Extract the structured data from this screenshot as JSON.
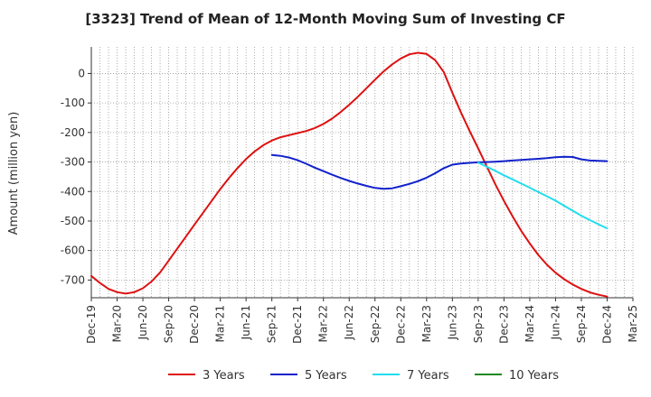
{
  "chart_data": {
    "type": "line",
    "title": "[3323]  Trend of Mean of 12-Month Moving Sum of Investing CF",
    "xlabel": "",
    "ylabel": "Amount (million yen)",
    "ylim": [
      -760,
      90
    ],
    "yticks": [
      0,
      -100,
      -200,
      -300,
      -400,
      -500,
      -600,
      -700
    ],
    "x_start": "2019-12",
    "x_end": "2025-03",
    "x_ticks": [
      "Dec-19",
      "Mar-20",
      "Jun-20",
      "Sep-20",
      "Dec-20",
      "Mar-21",
      "Jun-21",
      "Sep-21",
      "Dec-21",
      "Mar-22",
      "Jun-22",
      "Sep-22",
      "Dec-22",
      "Mar-23",
      "Jun-23",
      "Sep-23",
      "Dec-23",
      "Mar-24",
      "Jun-24",
      "Sep-24",
      "Dec-24",
      "Mar-25"
    ],
    "grid": true,
    "legend_position": "bottom",
    "series": [
      {
        "name": "3 Years",
        "color": "#dd1111",
        "x_index": [
          0,
          1,
          2,
          3,
          4,
          5,
          6,
          7,
          8,
          9,
          10,
          11,
          12,
          13,
          14,
          15,
          16,
          17,
          18,
          19,
          20,
          21,
          22,
          23,
          24,
          25,
          26,
          27,
          28,
          29,
          30,
          31,
          32,
          33,
          34,
          35,
          36,
          37,
          38,
          39,
          40,
          41,
          42,
          43,
          44,
          45,
          46,
          47,
          48,
          49,
          50,
          51,
          52,
          53,
          54,
          55,
          56,
          57,
          58,
          59,
          60
        ],
        "values": [
          -686,
          -710,
          -730,
          -741,
          -746,
          -741,
          -728,
          -705,
          -674,
          -634,
          -593,
          -553,
          -512,
          -472,
          -432,
          -392,
          -355,
          -321,
          -290,
          -264,
          -243,
          -227,
          -216,
          -209,
          -202,
          -195,
          -185,
          -171,
          -153,
          -131,
          -106,
          -79,
          -50,
          -21,
          7,
          31,
          51,
          65,
          70,
          66,
          45,
          5,
          -65,
          -132,
          -194,
          -254,
          -315,
          -376,
          -432,
          -484,
          -533,
          -576,
          -615,
          -648,
          -675,
          -697,
          -715,
          -730,
          -742,
          -750,
          -756
        ],
        "display_end_index": 60
      },
      {
        "name": "5 Years",
        "color": "#1122cc",
        "x_index": [
          21,
          22,
          23,
          24,
          25,
          26,
          27,
          28,
          29,
          30,
          31,
          32,
          33,
          34,
          35,
          36,
          37,
          38,
          39,
          40,
          41,
          42,
          43,
          44,
          45,
          46,
          47,
          48,
          49,
          50,
          51,
          52,
          53,
          54,
          55,
          56,
          57,
          58,
          59,
          60
        ],
        "values": [
          -276,
          -279,
          -285,
          -294,
          -306,
          -319,
          -331,
          -343,
          -354,
          -364,
          -373,
          -381,
          -388,
          -391,
          -389,
          -382,
          -374,
          -365,
          -353,
          -338,
          -321,
          -309,
          -305,
          -303,
          -301,
          -300,
          -299,
          -297,
          -295,
          -293,
          -291,
          -289,
          -287,
          -284,
          -282,
          -283,
          -291,
          -295,
          -296,
          -297
        ]
      },
      {
        "name": "7 Years",
        "color": "#22ddee",
        "x_index": [
          45,
          46,
          47,
          48,
          49,
          50,
          51,
          52,
          53,
          54,
          55,
          56,
          57,
          58,
          59,
          60
        ],
        "values": [
          -302,
          -316,
          -330,
          -345,
          -359,
          -373,
          -387,
          -402,
          -416,
          -431,
          -448,
          -465,
          -482,
          -497,
          -511,
          -525
        ]
      },
      {
        "name": "10 Years",
        "color": "#228822",
        "x_index": [],
        "values": []
      }
    ]
  }
}
